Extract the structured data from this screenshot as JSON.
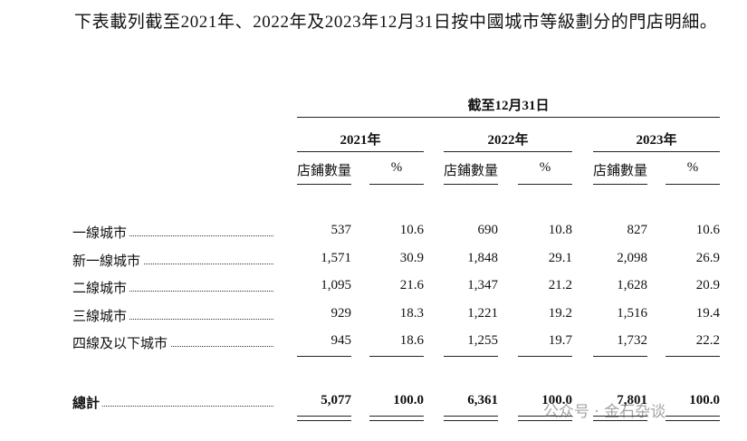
{
  "intro": "下表載列截至2021年、2022年及2023年12月31日按中國城市等級劃分的門店明細。",
  "table": {
    "period_header": "截至12月31日",
    "years": [
      "2021年",
      "2022年",
      "2023年"
    ],
    "columns": [
      "店鋪數量",
      "%",
      "店鋪數量",
      "%",
      "店鋪數量",
      "%"
    ],
    "rows": [
      [
        "一線城市",
        "537",
        "10.6",
        "690",
        "10.8",
        "827",
        "10.6"
      ],
      [
        "新一線城市",
        "1,571",
        "30.9",
        "1,848",
        "29.1",
        "2,098",
        "26.9"
      ],
      [
        "二線城市",
        "1,095",
        "21.6",
        "1,347",
        "21.2",
        "1,628",
        "20.9"
      ],
      [
        "三線城市",
        "929",
        "18.3",
        "1,221",
        "19.2",
        "1,516",
        "19.4"
      ],
      [
        "四線及以下城市",
        "945",
        "18.6",
        "1,255",
        "19.7",
        "1,732",
        "22.2"
      ]
    ],
    "total": [
      "總計",
      "5,077",
      "100.0",
      "6,361",
      "100.0",
      "7,801",
      "100.0"
    ]
  },
  "watermark": "公众号 · 金石杂谈"
}
